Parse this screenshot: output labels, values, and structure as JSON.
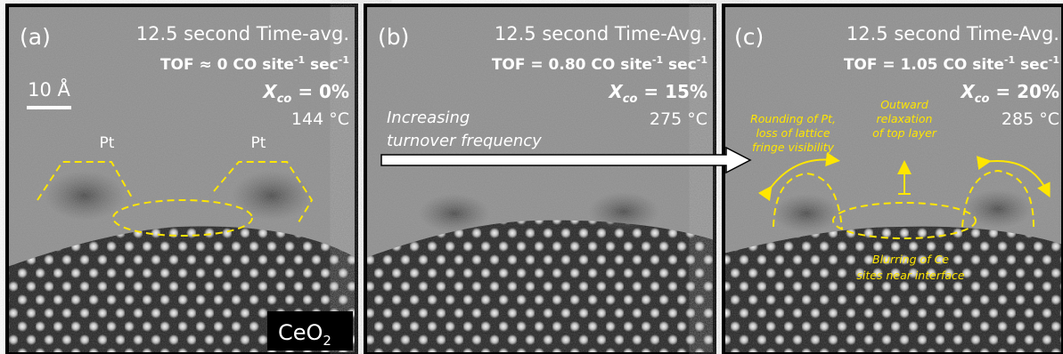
{
  "panels": [
    {
      "label": "(a)",
      "title": "12.5 second Time-avg.",
      "tof": {
        "main": "TOF ≈ 0 CO site",
        "sup1": "-1",
        "mid": " sec",
        "sup2": "-1"
      },
      "conversion": {
        "symbol": "X",
        "sub": "co",
        "rest": " = 0%"
      },
      "temperature": "144 °C",
      "scale_bar": "10 Å",
      "particles": [
        "Pt",
        "Pt"
      ],
      "substrate": {
        "main": "CeO",
        "sub": "2"
      }
    },
    {
      "label": "(b)",
      "title": "12.5 second Time-Avg.",
      "tof": {
        "main": "TOF = 0.80 CO site",
        "sup1": "-1",
        "mid": " sec",
        "sup2": "-1"
      },
      "conversion": {
        "symbol": "X",
        "sub": "co",
        "rest": " = 15%"
      },
      "temperature": "275 °C",
      "arrow_text": [
        "Increasing",
        "turnover frequency"
      ]
    },
    {
      "label": "(c)",
      "title": "12.5 second Time-Avg.",
      "tof": {
        "main": "TOF = 1.05 CO site",
        "sup1": "-1",
        "mid": " sec",
        "sup2": "-1"
      },
      "conversion": {
        "symbol": "X",
        "sub": "co",
        "rest": " = 20%"
      },
      "temperature": "285 °C",
      "annotations": [
        [
          "Rounding of Pt,",
          "loss of lattice",
          "fringe visibility"
        ],
        [
          "Outward",
          "relaxation",
          "of top layer"
        ],
        [
          "Blurring of Ce",
          "sites near interface"
        ]
      ]
    }
  ]
}
